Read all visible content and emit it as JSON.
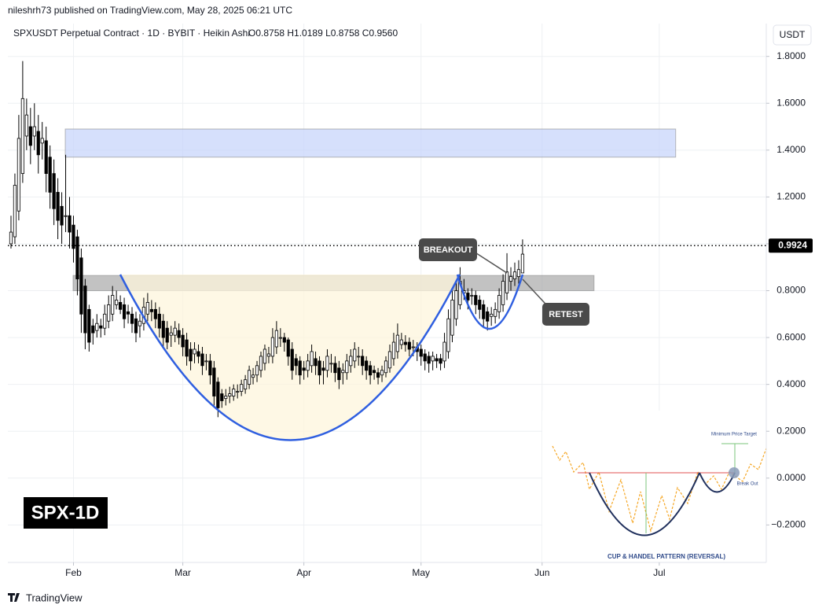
{
  "header": {
    "publisher": "nileshrh73 published on TradingView.com, May 28, 2025 06:21 UTC",
    "footer_logo": "TradingView"
  },
  "chart_data": {
    "type": "candlestick",
    "title": "SPXUSDT Perpetual Contract · 1D · BYBIT · Heikin Ashi",
    "ohlc_text": "O0.8758 H1.0189 L0.8758 C0.9560",
    "currency": "USDT",
    "badge": "SPX-1D",
    "annotations": [
      "BREAKOUT",
      "RETEST"
    ],
    "x": [
      0,
      1,
      2,
      3,
      4,
      5,
      6,
      7,
      8,
      9,
      10,
      11,
      12,
      13,
      14,
      15,
      16,
      17,
      18,
      19,
      20,
      21,
      22,
      23,
      24,
      25,
      26,
      27,
      28,
      29,
      30,
      31,
      32,
      33,
      34,
      35,
      36,
      37,
      38,
      39,
      40,
      41,
      42,
      43,
      44,
      45,
      46,
      47,
      48,
      49,
      50,
      51,
      52,
      53,
      54,
      55,
      56,
      57,
      58,
      59,
      60,
      61,
      62,
      63,
      64,
      65,
      66,
      67,
      68,
      69,
      70,
      71,
      72,
      73,
      74,
      75,
      76,
      77,
      78,
      79,
      80,
      81,
      82,
      83,
      84,
      85,
      86,
      87,
      88,
      89,
      90,
      91,
      92,
      93,
      94,
      95,
      96,
      97,
      98,
      99,
      100,
      101,
      102,
      103,
      104,
      105,
      106,
      107,
      108,
      109,
      110,
      111,
      112,
      113,
      114,
      115,
      116,
      117,
      118,
      119,
      120,
      121,
      122,
      123,
      124,
      125,
      126,
      127,
      128,
      129,
      130,
      131
    ],
    "open": [
      1.0,
      1.03,
      1.14,
      1.3,
      1.46,
      1.5,
      1.46,
      1.48,
      1.43,
      1.44,
      1.37,
      1.3,
      1.22,
      1.16,
      1.12,
      1.12,
      1.08,
      1.03,
      0.94,
      0.82,
      0.72,
      0.65,
      0.63,
      0.65,
      0.64,
      0.67,
      0.7,
      0.74,
      0.75,
      0.74,
      0.71,
      0.7,
      0.68,
      0.65,
      0.66,
      0.7,
      0.72,
      0.72,
      0.7,
      0.67,
      0.64,
      0.61,
      0.61,
      0.63,
      0.61,
      0.59,
      0.55,
      0.53,
      0.54,
      0.53,
      0.5,
      0.5,
      0.47,
      0.41,
      0.36,
      0.34,
      0.35,
      0.35,
      0.37,
      0.37,
      0.38,
      0.4,
      0.43,
      0.44,
      0.46,
      0.49,
      0.52,
      0.52,
      0.56,
      0.6,
      0.6,
      0.59,
      0.55,
      0.51,
      0.5,
      0.47,
      0.46,
      0.48,
      0.51,
      0.5,
      0.47,
      0.46,
      0.49,
      0.49,
      0.47,
      0.45,
      0.45,
      0.48,
      0.5,
      0.52,
      0.52,
      0.5,
      0.48,
      0.46,
      0.45,
      0.44,
      0.45,
      0.47,
      0.51,
      0.54,
      0.57,
      0.58,
      0.58,
      0.56,
      0.56,
      0.55,
      0.53,
      0.52,
      0.5,
      0.51,
      0.51,
      0.5,
      0.54,
      0.61,
      0.68,
      0.74,
      0.79,
      0.79,
      0.78,
      0.78,
      0.76,
      0.74,
      0.71,
      0.69,
      0.69,
      0.71,
      0.74,
      0.79,
      0.84,
      0.85,
      0.86,
      0.8758
    ],
    "high": [
      1.12,
      1.3,
      1.55,
      1.78,
      1.62,
      1.58,
      1.6,
      1.55,
      1.52,
      1.5,
      1.42,
      1.36,
      1.28,
      1.22,
      1.38,
      1.2,
      1.12,
      1.06,
      0.98,
      0.85,
      0.74,
      0.68,
      0.7,
      0.68,
      0.74,
      0.78,
      0.82,
      0.8,
      0.78,
      0.77,
      0.74,
      0.73,
      0.71,
      0.7,
      0.77,
      0.79,
      0.76,
      0.75,
      0.73,
      0.7,
      0.67,
      0.65,
      0.67,
      0.66,
      0.64,
      0.62,
      0.58,
      0.58,
      0.57,
      0.56,
      0.53,
      0.53,
      0.5,
      0.43,
      0.38,
      0.38,
      0.39,
      0.4,
      0.4,
      0.42,
      0.44,
      0.48,
      0.47,
      0.5,
      0.54,
      0.57,
      0.56,
      0.64,
      0.67,
      0.64,
      0.62,
      0.6,
      0.58,
      0.53,
      0.52,
      0.5,
      0.53,
      0.57,
      0.54,
      0.52,
      0.5,
      0.55,
      0.53,
      0.52,
      0.5,
      0.49,
      0.53,
      0.55,
      0.58,
      0.56,
      0.55,
      0.52,
      0.5,
      0.48,
      0.47,
      0.48,
      0.52,
      0.57,
      0.62,
      0.66,
      0.62,
      0.61,
      0.6,
      0.59,
      0.58,
      0.57,
      0.55,
      0.54,
      0.54,
      0.53,
      0.53,
      0.62,
      0.72,
      0.8,
      0.84,
      0.9,
      0.85,
      0.81,
      0.81,
      0.8,
      0.78,
      0.76,
      0.73,
      0.73,
      0.75,
      0.81,
      0.87,
      0.96,
      0.9,
      0.92,
      0.93,
      1.0189
    ],
    "low": [
      0.98,
      1.0,
      1.1,
      1.26,
      1.4,
      1.34,
      1.4,
      1.3,
      1.36,
      1.22,
      1.15,
      1.08,
      1.02,
      1.0,
      1.05,
      0.98,
      0.92,
      0.78,
      0.62,
      0.55,
      0.54,
      0.57,
      0.6,
      0.6,
      0.61,
      0.64,
      0.67,
      0.72,
      0.7,
      0.64,
      0.66,
      0.62,
      0.58,
      0.6,
      0.63,
      0.67,
      0.67,
      0.64,
      0.6,
      0.56,
      0.55,
      0.56,
      0.58,
      0.57,
      0.52,
      0.48,
      0.46,
      0.49,
      0.49,
      0.44,
      0.46,
      0.4,
      0.31,
      0.26,
      0.3,
      0.31,
      0.32,
      0.33,
      0.34,
      0.35,
      0.36,
      0.38,
      0.4,
      0.41,
      0.43,
      0.46,
      0.49,
      0.49,
      0.53,
      0.56,
      0.54,
      0.48,
      0.42,
      0.44,
      0.4,
      0.42,
      0.43,
      0.45,
      0.44,
      0.4,
      0.4,
      0.43,
      0.45,
      0.41,
      0.38,
      0.4,
      0.42,
      0.45,
      0.47,
      0.48,
      0.44,
      0.42,
      0.4,
      0.42,
      0.4,
      0.41,
      0.43,
      0.45,
      0.48,
      0.51,
      0.55,
      0.54,
      0.52,
      0.52,
      0.5,
      0.48,
      0.46,
      0.45,
      0.46,
      0.47,
      0.46,
      0.47,
      0.51,
      0.58,
      0.65,
      0.72,
      0.76,
      0.72,
      0.74,
      0.7,
      0.68,
      0.64,
      0.63,
      0.65,
      0.66,
      0.68,
      0.71,
      0.76,
      0.8,
      0.82,
      0.83,
      0.8758
    ],
    "close": [
      1.05,
      1.25,
      1.45,
      1.62,
      1.55,
      1.42,
      1.5,
      1.38,
      1.45,
      1.3,
      1.22,
      1.15,
      1.1,
      1.08,
      1.12,
      1.05,
      0.98,
      0.85,
      0.7,
      0.62,
      0.58,
      0.62,
      0.66,
      0.64,
      0.7,
      0.74,
      0.78,
      0.76,
      0.72,
      0.68,
      0.7,
      0.66,
      0.62,
      0.67,
      0.73,
      0.75,
      0.71,
      0.68,
      0.64,
      0.6,
      0.58,
      0.62,
      0.64,
      0.6,
      0.56,
      0.52,
      0.5,
      0.55,
      0.52,
      0.48,
      0.5,
      0.44,
      0.35,
      0.3,
      0.33,
      0.35,
      0.36,
      0.38,
      0.37,
      0.4,
      0.42,
      0.46,
      0.44,
      0.48,
      0.52,
      0.55,
      0.53,
      0.6,
      0.63,
      0.6,
      0.58,
      0.52,
      0.46,
      0.48,
      0.44,
      0.46,
      0.5,
      0.54,
      0.48,
      0.44,
      0.46,
      0.52,
      0.49,
      0.45,
      0.42,
      0.46,
      0.5,
      0.52,
      0.55,
      0.52,
      0.48,
      0.46,
      0.44,
      0.45,
      0.43,
      0.46,
      0.5,
      0.54,
      0.58,
      0.61,
      0.59,
      0.57,
      0.55,
      0.56,
      0.54,
      0.52,
      0.5,
      0.49,
      0.52,
      0.5,
      0.49,
      0.58,
      0.68,
      0.76,
      0.8,
      0.84,
      0.8,
      0.76,
      0.78,
      0.74,
      0.72,
      0.68,
      0.67,
      0.7,
      0.72,
      0.78,
      0.84,
      0.88,
      0.86,
      0.88,
      0.89,
      0.956
    ],
    "up_color": "#ffffff",
    "down_color": "#000000",
    "last_price": 0.9924,
    "zones": [
      {
        "xlim": [
          13.9,
          170.2
        ],
        "ylim": [
          1.37,
          1.49
        ],
        "color": "#c5d3fb"
      },
      {
        "xlim": [
          15.9,
          149.3
        ],
        "ylim": [
          0.8,
          0.865
        ],
        "color": "#a8a8a8"
      }
    ],
    "xlim": [
      -0.8,
      193.4
    ],
    "ylim": [
      -0.36,
      1.94
    ],
    "xticks": [
      {
        "value": 16,
        "label": "Feb"
      },
      {
        "value": 44,
        "label": "Mar"
      },
      {
        "value": 75,
        "label": "Apr"
      },
      {
        "value": 105,
        "label": "May"
      },
      {
        "value": 136,
        "label": "Jun"
      },
      {
        "value": 166,
        "label": "Jul"
      }
    ],
    "yticks": [
      {
        "value": -0.2,
        "label": "−0.2000"
      },
      {
        "value": 0,
        "label": "0.0000"
      },
      {
        "value": 0.2,
        "label": "0.2000"
      },
      {
        "value": 0.4,
        "label": "0.4000"
      },
      {
        "value": 0.6,
        "label": "0.6000"
      },
      {
        "value": 0.8,
        "label": "0.8000"
      },
      {
        "value": 1.0,
        "label": "1.0000"
      },
      {
        "value": 1.2,
        "label": "1.2000"
      },
      {
        "value": 1.4,
        "label": "1.4000"
      },
      {
        "value": 1.6,
        "label": "1.6000"
      },
      {
        "value": 1.8,
        "label": "1.8000"
      }
    ],
    "grid": true
  },
  "inset": {
    "target": "Minimum Price Target",
    "breakout": "Break Out",
    "caption": "CUP & HANDEL PATTERN (REVERSAL)"
  }
}
